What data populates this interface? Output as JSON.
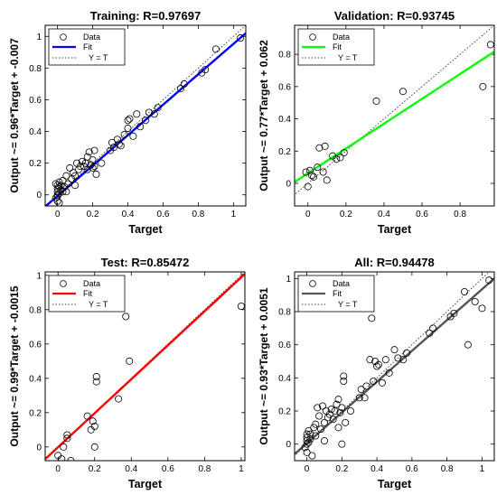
{
  "chart_data": [
    {
      "type": "scatter",
      "title": "Training: R=0.97697",
      "xlabel": "Target",
      "ylabel": "Output ~= 0.96*Target + -0.007",
      "xlim": [
        -0.07,
        1.07
      ],
      "ylim": [
        -0.07,
        1.07
      ],
      "xticks": [
        0,
        0.2,
        0.4,
        0.6,
        0.8,
        1
      ],
      "yticks": [
        0,
        0.2,
        0.4,
        0.6,
        0.8,
        1
      ],
      "xtick_labels": [
        "0",
        "0.2",
        "0.4",
        "0.6",
        "0.8",
        "1"
      ],
      "ytick_labels": [
        "0",
        "0.2",
        "0.4",
        "0.6",
        "0.8",
        "1"
      ],
      "fit": {
        "slope": 0.96,
        "intercept": -0.007,
        "color": "#0000ff"
      },
      "legend": {
        "position": "top-left",
        "entries": [
          "Data",
          "Fit",
          "Y = T"
        ]
      },
      "series": [
        {
          "name": "Data",
          "marker": "circle-open",
          "points": [
            [
              -0.01,
              -0.02
            ],
            [
              0,
              0
            ],
            [
              0,
              0.02
            ],
            [
              0,
              0.04
            ],
            [
              0,
              0.06
            ],
            [
              0,
              -0.01
            ],
            [
              0.01,
              0.01
            ],
            [
              0.01,
              0.05
            ],
            [
              0.01,
              0.08
            ],
            [
              0.02,
              0.03
            ],
            [
              0.02,
              0.06
            ],
            [
              -0.01,
              0.07
            ],
            [
              0,
              -0.04
            ],
            [
              0.01,
              -0.05
            ],
            [
              0.03,
              0.02
            ],
            [
              0.03,
              0.09
            ],
            [
              0.04,
              0.05
            ],
            [
              0.05,
              0.12
            ],
            [
              0.05,
              0.02
            ],
            [
              0.06,
              0.07
            ],
            [
              0.07,
              0.17
            ],
            [
              0.08,
              0.1
            ],
            [
              0.09,
              0.14
            ],
            [
              0.1,
              0.12
            ],
            [
              0.1,
              0.06
            ],
            [
              0.11,
              0.2
            ],
            [
              0.12,
              0.16
            ],
            [
              0.13,
              0.18
            ],
            [
              0.14,
              0.21
            ],
            [
              0.15,
              0.18
            ],
            [
              0.16,
              0.2
            ],
            [
              0.17,
              0.24
            ],
            [
              0.17,
              0.16
            ],
            [
              0.18,
              0.27
            ],
            [
              0.19,
              0.19
            ],
            [
              0.2,
              0.22
            ],
            [
              0.2,
              0.17
            ],
            [
              0.21,
              0.18
            ],
            [
              0.21,
              0.28
            ],
            [
              0.22,
              0.13
            ],
            [
              0.25,
              0.2
            ],
            [
              0.3,
              0.28
            ],
            [
              0.31,
              0.33
            ],
            [
              0.32,
              0.3
            ],
            [
              0.34,
              0.35
            ],
            [
              0.35,
              0.32
            ],
            [
              0.36,
              0.31
            ],
            [
              0.38,
              0.38
            ],
            [
              0.4,
              0.42
            ],
            [
              0.4,
              0.47
            ],
            [
              0.41,
              0.48
            ],
            [
              0.43,
              0.37
            ],
            [
              0.45,
              0.51
            ],
            [
              0.47,
              0.43
            ],
            [
              0.5,
              0.47
            ],
            [
              0.52,
              0.52
            ],
            [
              0.55,
              0.51
            ],
            [
              0.57,
              0.55
            ],
            [
              0.7,
              0.67
            ],
            [
              0.72,
              0.7
            ],
            [
              0.82,
              0.77
            ],
            [
              0.84,
              0.79
            ],
            [
              0.9,
              0.92
            ],
            [
              1.04,
              0.99
            ]
          ]
        }
      ]
    },
    {
      "type": "scatter",
      "title": "Validation: R=0.93745",
      "xlabel": "Target",
      "ylabel": "Output ~= 0.77*Target + 0.062",
      "xlim": [
        -0.07,
        0.98
      ],
      "ylim": [
        -0.14,
        0.98
      ],
      "xticks": [
        0,
        0.2,
        0.4,
        0.6,
        0.8
      ],
      "yticks": [
        0,
        0.2,
        0.4,
        0.6,
        0.8
      ],
      "xtick_labels": [
        "0",
        "0.2",
        "0.4",
        "0.6",
        "0.8"
      ],
      "ytick_labels": [
        "0",
        "0.2",
        "0.4",
        "0.6",
        "0.8"
      ],
      "fit": {
        "slope": 0.77,
        "intercept": 0.062,
        "color": "#00ff00"
      },
      "legend": {
        "position": "top-left",
        "entries": [
          "Data",
          "Fit",
          "Y = T"
        ]
      },
      "series": [
        {
          "name": "Data",
          "marker": "circle-open",
          "points": [
            [
              -0.01,
              0.07
            ],
            [
              0,
              -0.02
            ],
            [
              0.01,
              0.08
            ],
            [
              0.02,
              0.05
            ],
            [
              0.03,
              0.04
            ],
            [
              0.05,
              0.1
            ],
            [
              0.06,
              0.22
            ],
            [
              0.08,
              0.07
            ],
            [
              0.09,
              0.23
            ],
            [
              0.1,
              0.02
            ],
            [
              0.13,
              0.17
            ],
            [
              0.15,
              0.15
            ],
            [
              0.17,
              0.16
            ],
            [
              0.19,
              0.19
            ],
            [
              0.36,
              0.51
            ],
            [
              0.5,
              0.57
            ],
            [
              0.92,
              0.6
            ],
            [
              0.96,
              0.86
            ]
          ]
        }
      ]
    },
    {
      "type": "scatter",
      "title": "Test: R=0.85472",
      "xlabel": "Target",
      "ylabel": "Output ~= 0.99*Target + -0.0015",
      "xlim": [
        -0.07,
        1.02
      ],
      "ylim": [
        -0.08,
        1.02
      ],
      "xticks": [
        0,
        0.2,
        0.4,
        0.6,
        0.8,
        1
      ],
      "yticks": [
        0,
        0.2,
        0.4,
        0.6,
        0.8,
        1
      ],
      "xtick_labels": [
        "0",
        "0.2",
        "0.4",
        "0.6",
        "0.8",
        "1"
      ],
      "ytick_labels": [
        "0",
        "0.2",
        "0.4",
        "0.6",
        "0.8",
        "1"
      ],
      "fit": {
        "slope": 0.99,
        "intercept": -0.0015,
        "color": "#ff0000"
      },
      "legend": {
        "position": "top-left",
        "entries": [
          "Data",
          "Fit",
          "Y = T"
        ]
      },
      "series": [
        {
          "name": "Data",
          "marker": "circle-open",
          "points": [
            [
              0,
              -0.05
            ],
            [
              0.02,
              -0.07
            ],
            [
              0.03,
              0
            ],
            [
              0.05,
              0.05
            ],
            [
              0.05,
              0.07
            ],
            [
              0.07,
              -0.08
            ],
            [
              0.16,
              0.18
            ],
            [
              0.18,
              0.1
            ],
            [
              0.19,
              0.15
            ],
            [
              0.2,
              0
            ],
            [
              0.2,
              0.12
            ],
            [
              0.21,
              0.38
            ],
            [
              0.21,
              0.41
            ],
            [
              0.33,
              0.28
            ],
            [
              0.37,
              0.76
            ],
            [
              0.39,
              0.5
            ],
            [
              1.0,
              0.82
            ]
          ]
        }
      ]
    },
    {
      "type": "scatter",
      "title": "All: R=0.94478",
      "xlabel": "Target",
      "ylabel": "Output ~= 0.93*Target + 0.0051",
      "xlim": [
        -0.07,
        1.07
      ],
      "ylim": [
        -0.1,
        1.04
      ],
      "xticks": [
        0,
        0.2,
        0.4,
        0.6,
        0.8,
        1
      ],
      "yticks": [
        0,
        0.2,
        0.4,
        0.6,
        0.8,
        1
      ],
      "xtick_labels": [
        "0",
        "0.2",
        "0.4",
        "0.6",
        "0.8",
        "1"
      ],
      "ytick_labels": [
        "0",
        "0.2",
        "0.4",
        "0.6",
        "0.8",
        "1"
      ],
      "fit": {
        "slope": 0.93,
        "intercept": 0.0051,
        "color": "#555555"
      },
      "legend": {
        "position": "top-left",
        "entries": [
          "Data",
          "Fit",
          "Y = T"
        ]
      },
      "series": [
        {
          "name": "Data",
          "marker": "circle-open",
          "points": [
            [
              -0.01,
              -0.02
            ],
            [
              0,
              0
            ],
            [
              0,
              0.02
            ],
            [
              0,
              0.04
            ],
            [
              0,
              0.06
            ],
            [
              0,
              -0.05
            ],
            [
              0.01,
              0.01
            ],
            [
              0.01,
              0.08
            ],
            [
              0.02,
              0.03
            ],
            [
              0.02,
              0.06
            ],
            [
              0.03,
              -0.07
            ],
            [
              0.04,
              0.1
            ],
            [
              0.05,
              0.05
            ],
            [
              0.05,
              0.12
            ],
            [
              0.06,
              0.22
            ],
            [
              0.07,
              0.17
            ],
            [
              0.08,
              0.09
            ],
            [
              0.09,
              0.23
            ],
            [
              0.1,
              0.13
            ],
            [
              0.1,
              0.02
            ],
            [
              0.11,
              0.2
            ],
            [
              0.12,
              0.16
            ],
            [
              0.13,
              0.18
            ],
            [
              0.14,
              0.21
            ],
            [
              0.15,
              0.15
            ],
            [
              0.16,
              0.2
            ],
            [
              0.17,
              0.24
            ],
            [
              0.18,
              0.27
            ],
            [
              0.18,
              0.1
            ],
            [
              0.19,
              0.19
            ],
            [
              0.2,
              0.22
            ],
            [
              0.2,
              0
            ],
            [
              0.21,
              0.38
            ],
            [
              0.21,
              0.41
            ],
            [
              0.22,
              0.13
            ],
            [
              0.25,
              0.2
            ],
            [
              0.3,
              0.28
            ],
            [
              0.31,
              0.33
            ],
            [
              0.33,
              0.28
            ],
            [
              0.34,
              0.35
            ],
            [
              0.36,
              0.51
            ],
            [
              0.37,
              0.76
            ],
            [
              0.38,
              0.38
            ],
            [
              0.39,
              0.5
            ],
            [
              0.4,
              0.47
            ],
            [
              0.41,
              0.48
            ],
            [
              0.43,
              0.37
            ],
            [
              0.45,
              0.51
            ],
            [
              0.47,
              0.43
            ],
            [
              0.5,
              0.57
            ],
            [
              0.52,
              0.52
            ],
            [
              0.55,
              0.51
            ],
            [
              0.57,
              0.55
            ],
            [
              0.7,
              0.67
            ],
            [
              0.72,
              0.7
            ],
            [
              0.82,
              0.77
            ],
            [
              0.84,
              0.79
            ],
            [
              0.9,
              0.92
            ],
            [
              0.92,
              0.6
            ],
            [
              0.96,
              0.86
            ],
            [
              1.0,
              0.82
            ],
            [
              1.04,
              0.99
            ]
          ]
        }
      ]
    }
  ]
}
